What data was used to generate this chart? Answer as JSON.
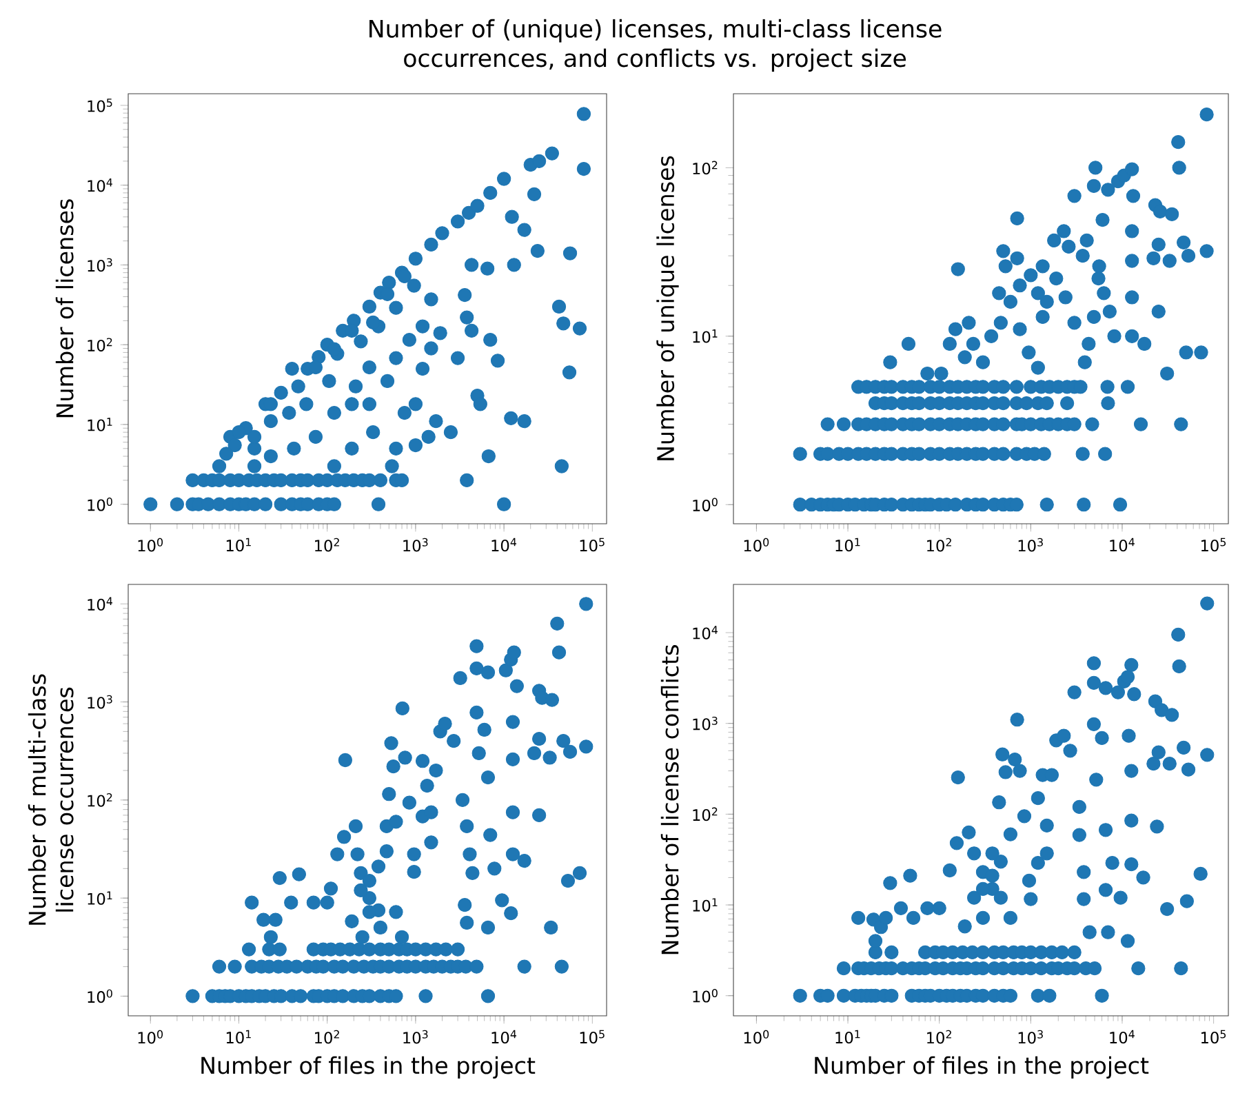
{
  "chart_data": [
    {
      "type": "scatter",
      "title": "Number of (unique) licenses, multi-class license occurrences, and conflicts vs. project size",
      "ylabel": "Number of licenses",
      "log": "xy",
      "marker": "circle",
      "color": "#1f77b4",
      "xlim": [
        0.56,
        145000
      ],
      "ylim": [
        0.57,
        140000
      ],
      "xticks": [
        {
          "value": 1,
          "label": "10$^{0}$"
        },
        {
          "value": 10,
          "label": "10$^{1}$"
        },
        {
          "value": 100,
          "label": "10$^{2}$"
        },
        {
          "value": 1000,
          "label": "10$^{3}$"
        },
        {
          "value": 10000,
          "label": "10$^{4}$"
        },
        {
          "value": 100000,
          "label": "10$^{5}$"
        }
      ],
      "yticks": [
        {
          "value": 1,
          "label": "10$^{0}$"
        },
        {
          "value": 10,
          "label": "10$^{1}$"
        },
        {
          "value": 100,
          "label": "10$^{2}$"
        },
        {
          "value": 1000,
          "label": "10$^{3}$"
        },
        {
          "value": 10000,
          "label": "10$^{4}$"
        },
        {
          "value": 100000,
          "label": "10$^{5}$"
        }
      ],
      "x": [
        1,
        2,
        3,
        3.5,
        4.5,
        6,
        8,
        10,
        12,
        15,
        20,
        30,
        40,
        50,
        60,
        80,
        100,
        120,
        380,
        10000,
        3,
        4,
        5,
        6,
        8,
        10,
        13,
        16,
        20,
        25,
        30,
        40,
        50,
        60,
        80,
        100,
        130,
        160,
        200,
        250,
        300,
        400,
        600,
        700,
        6,
        8,
        12,
        15,
        20,
        30,
        40,
        60,
        80,
        100,
        150,
        200,
        300,
        400,
        500,
        700,
        1000,
        1500,
        2000,
        3000,
        4000,
        5000,
        7000,
        10000,
        20000,
        25000,
        35000,
        80000,
        80000,
        22000,
        12300,
        17000,
        24000,
        56000,
        13000,
        42000,
        47000,
        72000,
        55000,
        12000,
        17000,
        45000,
        6700,
        3800,
        2500,
        4300,
        3800,
        7000,
        8500,
        5000,
        5400,
        3600,
        4300,
        6500,
        3000,
        1900,
        1500,
        1200,
        1000,
        1700,
        1400,
        1000,
        750,
        600,
        540,
        330,
        190,
        105,
        58,
        37,
        23,
        15,
        9,
        7.2,
        10,
        23,
        47,
        74,
        130,
        240,
        380,
        600,
        300,
        210,
        120,
        74,
        42,
        23,
        15,
        190,
        120,
        300,
        480,
        600,
        850,
        1200,
        1500,
        960,
        750,
        480,
        330,
        190,
        120
      ],
      "values": [
        1,
        1,
        1,
        1,
        1,
        1,
        1,
        1,
        1,
        1,
        1,
        1,
        1,
        1,
        1,
        1,
        1,
        1,
        1,
        1,
        2,
        2,
        2,
        2,
        2,
        2,
        2,
        2,
        2,
        2,
        2,
        2,
        2,
        2,
        2,
        2,
        2,
        2,
        2,
        2,
        2,
        2,
        2,
        2,
        3,
        7,
        9,
        5,
        18,
        25,
        50,
        50,
        70,
        100,
        150,
        200,
        300,
        450,
        600,
        800,
        1200,
        1800,
        2500,
        3500,
        4500,
        5500,
        8000,
        12000,
        18000,
        20000,
        25000,
        78000,
        16000,
        7700,
        4000,
        2750,
        1500,
        1400,
        1000,
        300,
        185,
        160,
        45,
        12,
        11,
        3,
        4,
        2,
        8,
        150,
        220,
        115,
        63,
        23,
        18,
        420,
        1000,
        900,
        68,
        140,
        90,
        50,
        18,
        11,
        7,
        5.5,
        14,
        5,
        3,
        8,
        18,
        35,
        18,
        14,
        11,
        7,
        5.5,
        4.3,
        8,
        18,
        30,
        52,
        77,
        110,
        170,
        290,
        52,
        30,
        14,
        7,
        5,
        4,
        3,
        5,
        3,
        18,
        35,
        68,
        115,
        170,
        370,
        550,
        720,
        430,
        190,
        150,
        88
      ]
    },
    {
      "type": "scatter",
      "ylabel": "Number of unique licenses",
      "log": "xy",
      "marker": "circle",
      "color": "#1f77b4",
      "xlim": [
        0.56,
        145000
      ],
      "ylim": [
        0.77,
        275
      ],
      "xticks": [
        {
          "value": 1,
          "label": "10$^{0}$"
        },
        {
          "value": 10,
          "label": "10$^{1}$"
        },
        {
          "value": 100,
          "label": "10$^{2}$"
        },
        {
          "value": 1000,
          "label": "10$^{3}$"
        },
        {
          "value": 10000,
          "label": "10$^{4}$"
        },
        {
          "value": 100000,
          "label": "10$^{5}$"
        }
      ],
      "yticks": [
        {
          "value": 1,
          "label": "10$^{0}$"
        },
        {
          "value": 10,
          "label": "10$^{1}$"
        },
        {
          "value": 100,
          "label": "10$^{2}$"
        }
      ],
      "x": [
        3,
        4,
        5,
        6,
        7,
        8,
        10,
        12,
        15,
        18,
        20,
        25,
        30,
        40,
        50,
        60,
        70,
        80,
        100,
        120,
        150,
        200,
        250,
        300,
        400,
        500,
        600,
        700,
        1500,
        3800,
        9500,
        3,
        5,
        6,
        8,
        10,
        13,
        16,
        20,
        25,
        30,
        40,
        50,
        60,
        80,
        100,
        130,
        160,
        200,
        250,
        300,
        400,
        500,
        700,
        900,
        1100,
        1400,
        3700,
        6500,
        6,
        9,
        13,
        16,
        20,
        25,
        30,
        40,
        50,
        60,
        80,
        100,
        130,
        160,
        200,
        250,
        300,
        400,
        500,
        700,
        800,
        1000,
        1300,
        1600,
        2000,
        2500,
        3000,
        4700,
        16000,
        44000,
        20,
        25,
        30,
        40,
        50,
        60,
        80,
        100,
        130,
        160,
        200,
        250,
        300,
        400,
        500,
        700,
        900,
        1200,
        1500,
        2500,
        7000,
        13,
        16,
        20,
        25,
        30,
        40,
        50,
        60,
        80,
        100,
        130,
        160,
        200,
        250,
        300,
        400,
        500,
        700,
        1000,
        1300,
        1600,
        2000,
        2500,
        3000,
        3500,
        6900,
        11500,
        29,
        46,
        130,
        150,
        210,
        160,
        450,
        500,
        530,
        710,
        710,
        760,
        1000,
        1200,
        1350,
        1350,
        1800,
        2300,
        2600,
        3000,
        3700,
        4100,
        5100,
        4900,
        7000,
        6100,
        5600,
        6300,
        7300,
        8200,
        9000,
        10500,
        12800,
        13200,
        12800,
        12800,
        12800,
        12800,
        17500,
        23000,
        26000,
        35000,
        25000,
        22000,
        33000,
        25000,
        31000,
        41000,
        42000,
        47000,
        53000,
        50000,
        73000,
        84000,
        84000,
        235,
        300,
        370,
        470,
        600,
        760,
        950,
        1200,
        1500,
        1900,
        2400,
        3000,
        3900,
        4300,
        4900,
        5500,
        190,
        105,
        74
      ],
      "values": [
        1,
        1,
        1,
        1,
        1,
        1,
        1,
        1,
        1,
        1,
        1,
        1,
        1,
        1,
        1,
        1,
        1,
        1,
        1,
        1,
        1,
        1,
        1,
        1,
        1,
        1,
        1,
        1,
        1,
        1,
        1,
        2,
        2,
        2,
        2,
        2,
        2,
        2,
        2,
        2,
        2,
        2,
        2,
        2,
        2,
        2,
        2,
        2,
        2,
        2,
        2,
        2,
        2,
        2,
        2,
        2,
        2,
        2,
        2,
        3,
        3,
        3,
        3,
        3,
        3,
        3,
        3,
        3,
        3,
        3,
        3,
        3,
        3,
        3,
        3,
        3,
        3,
        3,
        3,
        3,
        3,
        3,
        3,
        3,
        3,
        3,
        3,
        3,
        3,
        4,
        4,
        4,
        4,
        4,
        4,
        4,
        4,
        4,
        4,
        4,
        4,
        4,
        4,
        4,
        4,
        4,
        4,
        4,
        4,
        4,
        5,
        5,
        5,
        5,
        5,
        5,
        5,
        5,
        5,
        5,
        5,
        5,
        5,
        5,
        5,
        5,
        5,
        5,
        5,
        5,
        5,
        5,
        5,
        5,
        5,
        5,
        5,
        7,
        9,
        9,
        11,
        12,
        25,
        18,
        32,
        26,
        29,
        50,
        20,
        23,
        18,
        13,
        26,
        37,
        42,
        34,
        68,
        30,
        37,
        100,
        78,
        74,
        49,
        26,
        18,
        14,
        10,
        83,
        90,
        98,
        68,
        42,
        28,
        17,
        10,
        9,
        60,
        55,
        53,
        35,
        29,
        28,
        14,
        6,
        142,
        100,
        36,
        30,
        8,
        8,
        32,
        207,
        9,
        7,
        10,
        12,
        16,
        11,
        8,
        6.5,
        16,
        22,
        17,
        12,
        7,
        9,
        13,
        22,
        7.5,
        6,
        6
      ]
    },
    {
      "type": "scatter",
      "xlabel": "Number of files in the project",
      "ylabel": "Number of multi-class license occurrences",
      "log": "xy",
      "marker": "circle",
      "color": "#1f77b4",
      "xlim": [
        0.56,
        145000
      ],
      "ylim": [
        0.63,
        15800
      ],
      "xticks": [
        {
          "value": 1,
          "label": "10$^{0}$"
        },
        {
          "value": 10,
          "label": "10$^{1}$"
        },
        {
          "value": 100,
          "label": "10$^{2}$"
        },
        {
          "value": 1000,
          "label": "10$^{3}$"
        },
        {
          "value": 10000,
          "label": "10$^{4}$"
        },
        {
          "value": 100000,
          "label": "10$^{5}$"
        }
      ],
      "yticks": [
        {
          "value": 1,
          "label": "10$^{0}$"
        },
        {
          "value": 10,
          "label": "10$^{1}$"
        },
        {
          "value": 100,
          "label": "10$^{2}$"
        },
        {
          "value": 1000,
          "label": "10$^{3}$"
        },
        {
          "value": 10000,
          "label": "10$^{4}$"
        }
      ],
      "x": [
        3,
        5,
        6,
        7,
        8,
        10,
        12,
        14,
        17,
        20,
        25,
        30,
        40,
        50,
        70,
        80,
        100,
        120,
        150,
        200,
        250,
        300,
        400,
        500,
        600,
        1300,
        6600,
        6,
        9,
        14,
        18,
        22,
        28,
        35,
        45,
        60,
        75,
        90,
        120,
        150,
        200,
        260,
        330,
        400,
        500,
        650,
        800,
        1000,
        1300,
        1600,
        2000,
        2500,
        3000,
        3700,
        4900,
        17000,
        45000,
        13,
        22,
        29,
        70,
        90,
        110,
        140,
        180,
        230,
        300,
        400,
        500,
        650,
        800,
        1000,
        1300,
        1700,
        2200,
        3000,
        14,
        19,
        26,
        23,
        29,
        48,
        39,
        70,
        100,
        110,
        130,
        160,
        155,
        210,
        220,
        240,
        300,
        380,
        470,
        500,
        530,
        560,
        710,
        760,
        850,
        960,
        1200,
        1200,
        1350,
        1700,
        1900,
        2150,
        2700,
        3200,
        3400,
        3800,
        4100,
        4400,
        3600,
        3800,
        4900,
        4900,
        4900,
        5200,
        6000,
        6600,
        6600,
        7000,
        7800,
        6600,
        9500,
        10500,
        12000,
        13000,
        14000,
        12600,
        12600,
        12600,
        12600,
        17000,
        12000,
        25000,
        27000,
        35000,
        22000,
        25000,
        33000,
        25000,
        40000,
        42000,
        47000,
        56000,
        53000,
        72000,
        34000,
        85000,
        85000,
        240,
        300,
        380,
        470,
        600,
        190,
        300,
        600,
        960,
        1500,
        1500,
        250,
        400,
        700
      ],
      "values": [
        1,
        1,
        1,
        1,
        1,
        1,
        1,
        1,
        1,
        1,
        1,
        1,
        1,
        1,
        1,
        1,
        1,
        1,
        1,
        1,
        1,
        1,
        1,
        1,
        1,
        1,
        1,
        2,
        2,
        2,
        2,
        2,
        2,
        2,
        2,
        2,
        2,
        2,
        2,
        2,
        2,
        2,
        2,
        2,
        2,
        2,
        2,
        2,
        2,
        2,
        2,
        2,
        2,
        2,
        2,
        2,
        2,
        3,
        3,
        3,
        3,
        3,
        3,
        3,
        3,
        3,
        3,
        3,
        3,
        3,
        3,
        3,
        3,
        3,
        3,
        3,
        9,
        6,
        6,
        4,
        16,
        17.5,
        9,
        9,
        9,
        12.5,
        28,
        255,
        42,
        54,
        28,
        18,
        10,
        7.5,
        54,
        115,
        380,
        220,
        860,
        270,
        94,
        28,
        68,
        250,
        140,
        200,
        500,
        600,
        400,
        1750,
        100,
        54,
        28,
        18,
        8.5,
        5.6,
        3700,
        2200,
        780,
        300,
        520,
        2000,
        170,
        44,
        20,
        5,
        9.5,
        2100,
        2700,
        3200,
        1450,
        625,
        260,
        75,
        28,
        24,
        7,
        1300,
        1100,
        1050,
        300,
        420,
        270,
        70,
        6300,
        3200,
        400,
        310,
        15,
        18,
        5,
        10000,
        350,
        12,
        15,
        21,
        30,
        60,
        5.8,
        7.2,
        7.2,
        18.5,
        37,
        75,
        4,
        5,
        4
      ]
    },
    {
      "type": "scatter",
      "xlabel": "Number of files in the project",
      "ylabel": "Number of license conflicts",
      "log": "xy",
      "marker": "circle",
      "color": "#1f77b4",
      "xlim": [
        0.56,
        145000
      ],
      "ylim": [
        0.6,
        34000
      ],
      "xticks": [
        {
          "value": 1,
          "label": "10$^{0}$"
        },
        {
          "value": 10,
          "label": "10$^{1}$"
        },
        {
          "value": 100,
          "label": "10$^{2}$"
        },
        {
          "value": 1000,
          "label": "10$^{3}$"
        },
        {
          "value": 10000,
          "label": "10$^{4}$"
        },
        {
          "value": 100000,
          "label": "10$^{5}$"
        }
      ],
      "yticks": [
        {
          "value": 1,
          "label": "10$^{0}$"
        },
        {
          "value": 10,
          "label": "10$^{1}$"
        },
        {
          "value": 100,
          "label": "10$^{2}$"
        },
        {
          "value": 1000,
          "label": "10$^{3}$"
        },
        {
          "value": 10000,
          "label": "10$^{4}$"
        }
      ],
      "x": [
        3,
        5,
        6,
        9,
        12,
        14,
        16,
        18,
        20,
        25,
        30,
        50,
        60,
        70,
        80,
        100,
        120,
        140,
        170,
        200,
        250,
        300,
        400,
        500,
        600,
        1200,
        1600,
        6000,
        9,
        13,
        15,
        18,
        22,
        26,
        30,
        40,
        50,
        60,
        70,
        90,
        110,
        140,
        170,
        200,
        250,
        300,
        400,
        500,
        650,
        800,
        1000,
        1300,
        1700,
        2000,
        2500,
        3000,
        4000,
        5000,
        15000,
        44000,
        20,
        30,
        70,
        90,
        110,
        140,
        180,
        230,
        300,
        400,
        500,
        650,
        800,
        1000,
        1300,
        1700,
        2200,
        3000,
        13,
        19,
        23,
        26,
        20,
        29,
        48,
        38,
        52,
        74,
        100,
        130,
        160,
        155,
        210,
        240,
        300,
        380,
        470,
        450,
        490,
        530,
        670,
        710,
        760,
        850,
        1000,
        1200,
        1350,
        1700,
        1900,
        2300,
        2700,
        3000,
        3400,
        3400,
        3800,
        3800,
        4400,
        4900,
        4900,
        4900,
        5200,
        6000,
        6600,
        6600,
        7000,
        7800,
        6600,
        9000,
        9600,
        10500,
        11500,
        12600,
        13500,
        11800,
        12600,
        12600,
        12600,
        11500,
        17000,
        23000,
        27000,
        35000,
        22000,
        25000,
        33000,
        24000,
        31000,
        41000,
        42000,
        47000,
        53000,
        51000,
        72000,
        85000,
        85000,
        240,
        300,
        380,
        470,
        600,
        380,
        190,
        300,
        600,
        960,
        1200,
        1500,
        1500
      ],
      "values": [
        1,
        1,
        1,
        1,
        1,
        1,
        1,
        1,
        1,
        1,
        1,
        1,
        1,
        1,
        1,
        1,
        1,
        1,
        1,
        1,
        1,
        1,
        1,
        1,
        1,
        1,
        1,
        1,
        2,
        2,
        2,
        2,
        2,
        2,
        2,
        2,
        2,
        2,
        2,
        2,
        2,
        2,
        2,
        2,
        2,
        2,
        2,
        2,
        2,
        2,
        2,
        2,
        2,
        2,
        2,
        2,
        2,
        2,
        2,
        2,
        3,
        3,
        3,
        3,
        3,
        3,
        3,
        3,
        3,
        3,
        3,
        3,
        3,
        3,
        3,
        3,
        3,
        3,
        7.2,
        6.9,
        5.7,
        7.2,
        4,
        17.4,
        21,
        9.2,
        7.2,
        9.2,
        9.2,
        24,
        254,
        48,
        63,
        37,
        23,
        15,
        12,
        135,
        455,
        290,
        400,
        1100,
        300,
        95,
        11.6,
        150,
        270,
        270,
        650,
        730,
        500,
        2200,
        59,
        120,
        23,
        11.6,
        5,
        4600,
        2800,
        980,
        240,
        690,
        2450,
        67,
        5,
        29,
        14.6,
        2200,
        12,
        2900,
        3250,
        4400,
        2100,
        730,
        300,
        85,
        28,
        4,
        20,
        1750,
        1400,
        1240,
        360,
        480,
        360,
        73,
        9,
        9500,
        4250,
        540,
        310,
        11,
        22,
        21000,
        450,
        12,
        15,
        21,
        30,
        60,
        37,
        5.8,
        7.2,
        7.2,
        18.5,
        29,
        37,
        75
      ]
    }
  ]
}
